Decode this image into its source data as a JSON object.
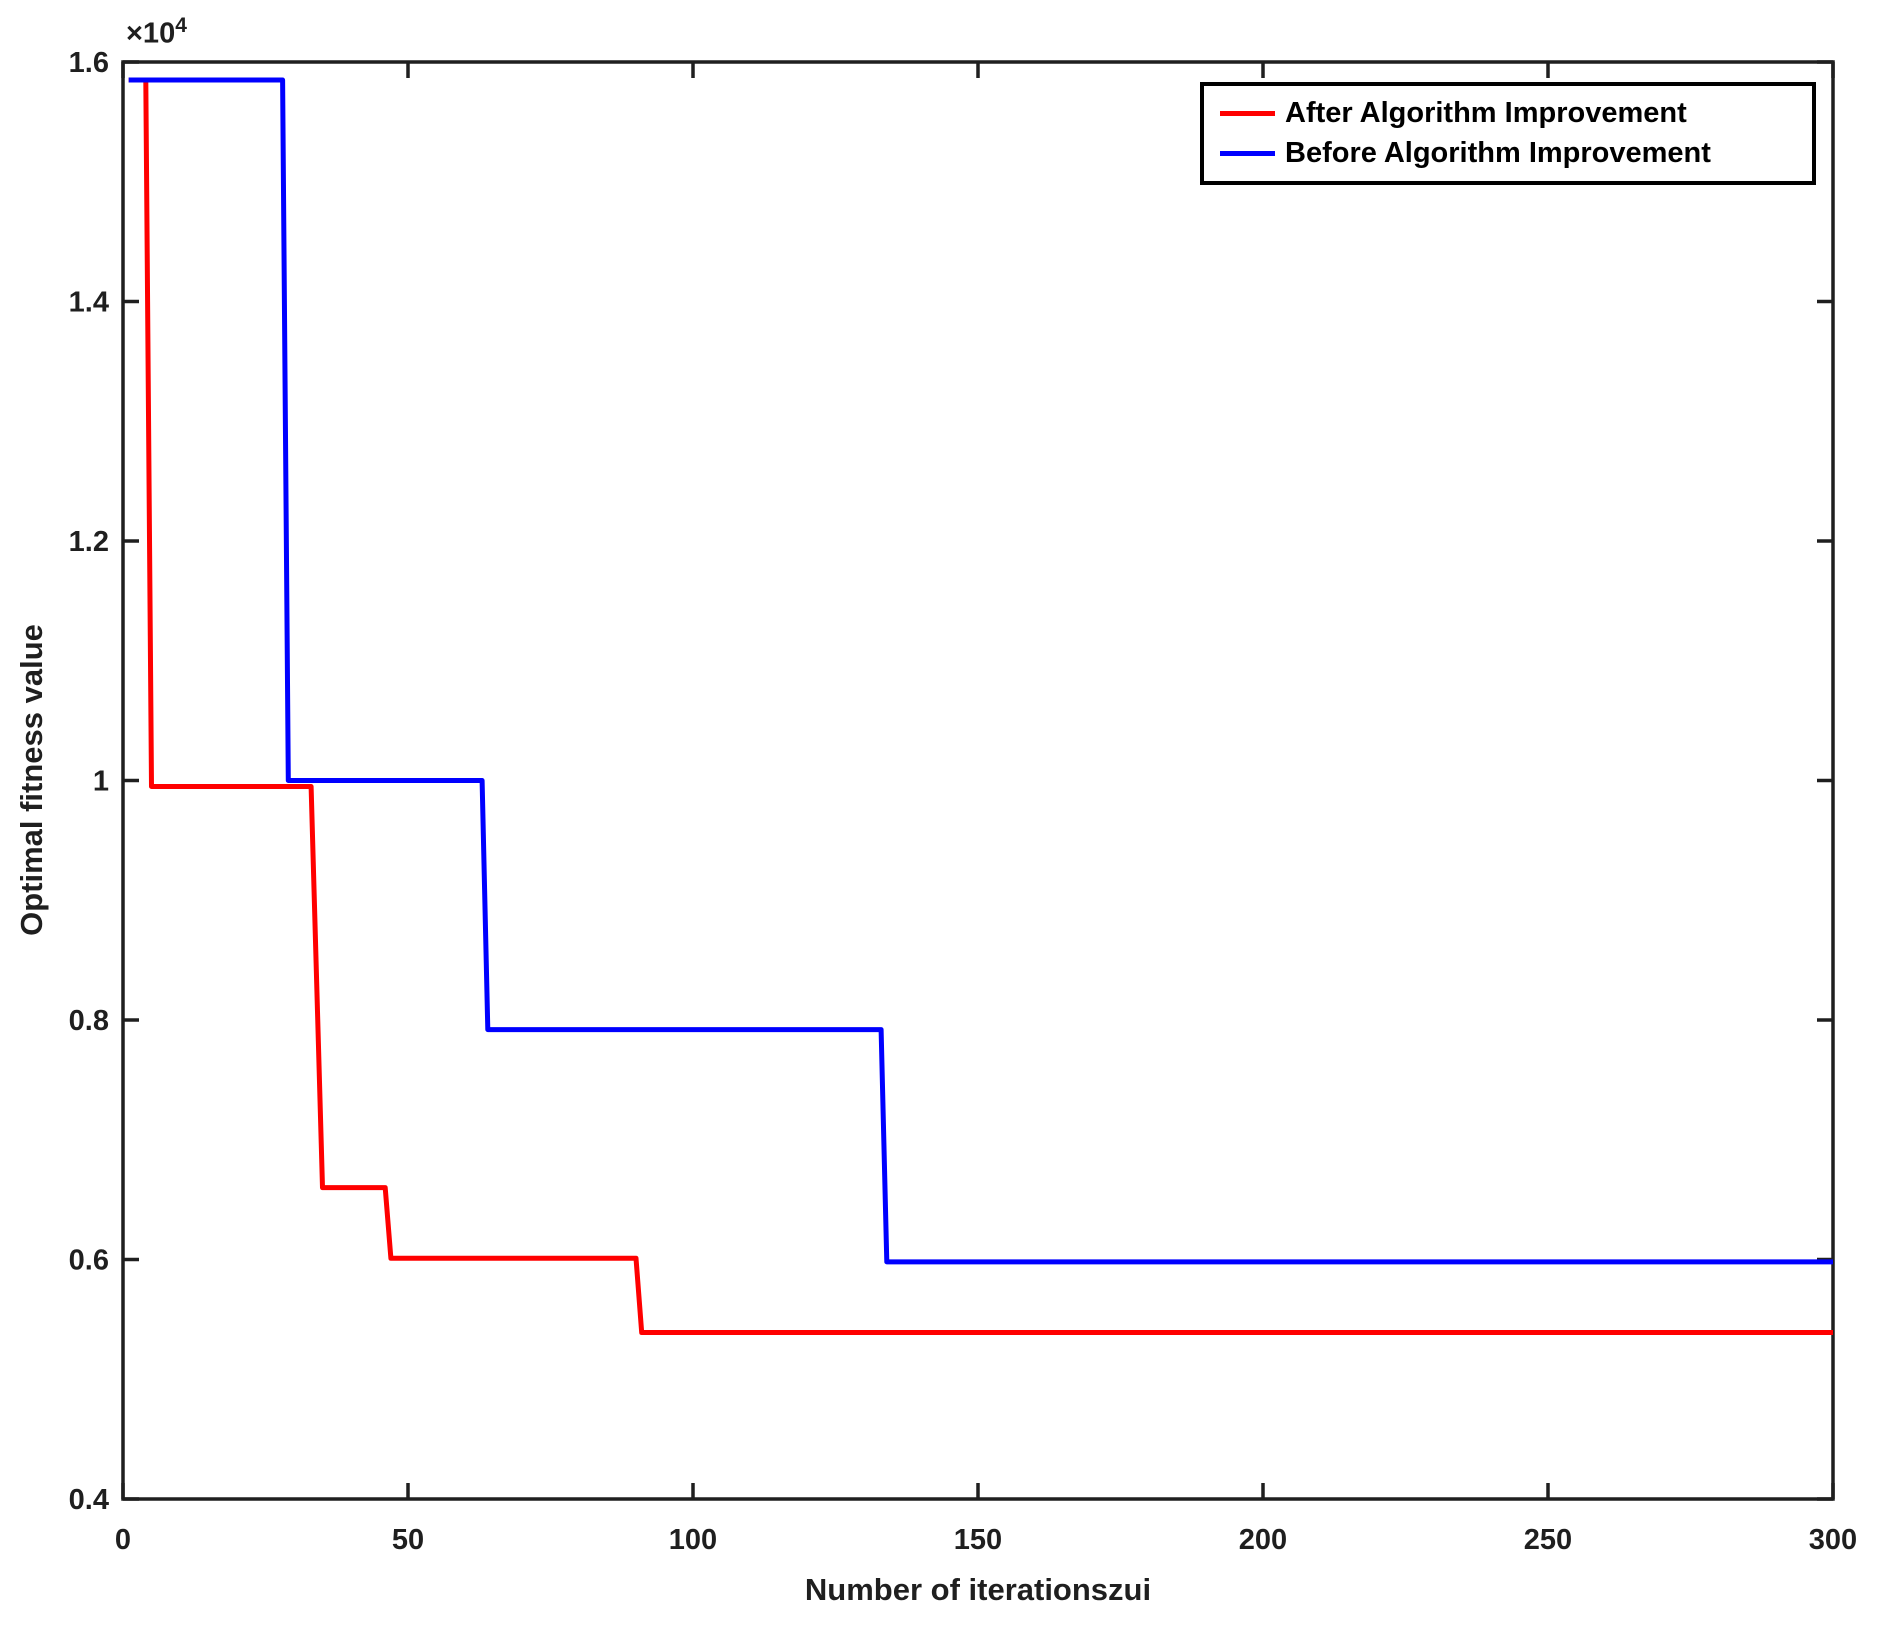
{
  "chart_data": {
    "type": "line",
    "subtype": "step-convergence",
    "title": "",
    "xlabel": "Number of iterationszui",
    "ylabel": "Optimal fitness value",
    "y_exponent_base": "×10",
    "y_exponent_power": "4",
    "xlim": [
      0,
      300
    ],
    "ylim": [
      4000,
      16000
    ],
    "x_ticks": [
      0,
      50,
      100,
      150,
      200,
      250,
      300
    ],
    "x_tick_labels": [
      "0",
      "50",
      "100",
      "150",
      "200",
      "250",
      "300"
    ],
    "y_ticks": [
      4000,
      6000,
      8000,
      10000,
      12000,
      14000,
      16000
    ],
    "y_tick_labels": [
      "0.4",
      "0.6",
      "0.8",
      "1",
      "1.2",
      "1.4",
      "1.6"
    ],
    "grid": false,
    "legend_position": "top-right",
    "axis_color": "#1f1f1f",
    "series": [
      {
        "name": "After Algorithm Improvement",
        "color": "#FF0000",
        "points": [
          [
            1,
            15850
          ],
          [
            4,
            15850
          ],
          [
            5,
            9950
          ],
          [
            33,
            9950
          ],
          [
            35,
            6600
          ],
          [
            46,
            6600
          ],
          [
            47,
            6010
          ],
          [
            90,
            6010
          ],
          [
            91,
            5390
          ],
          [
            300,
            5390
          ]
        ]
      },
      {
        "name": "Before Algorithm Improvement",
        "color": "#0000FF",
        "points": [
          [
            1,
            15850
          ],
          [
            28,
            15850
          ],
          [
            29,
            10000
          ],
          [
            63,
            10000
          ],
          [
            64,
            7920
          ],
          [
            133,
            7920
          ],
          [
            134,
            5980
          ],
          [
            300,
            5980
          ]
        ]
      }
    ]
  }
}
